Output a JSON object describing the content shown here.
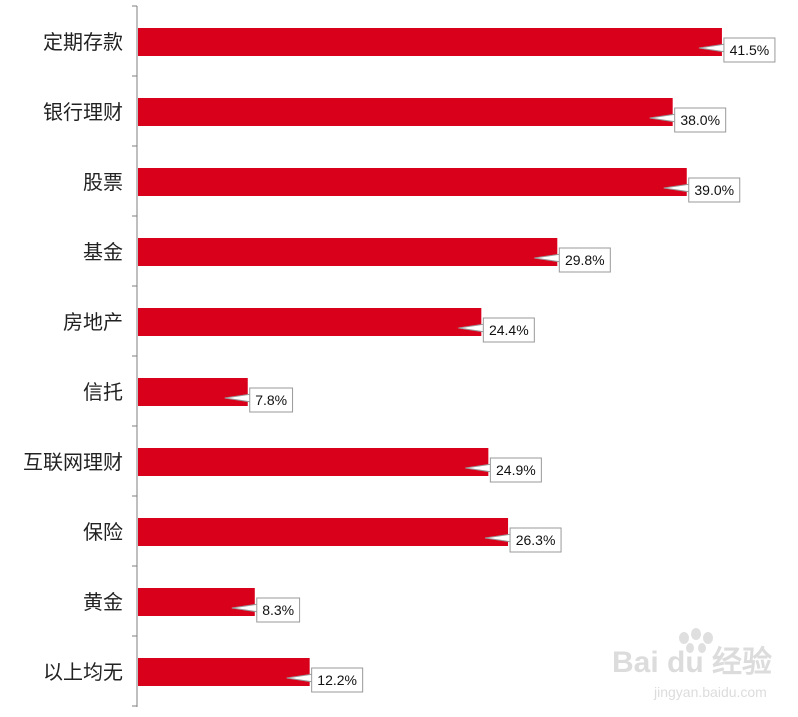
{
  "chart_data": {
    "type": "bar",
    "orientation": "horizontal",
    "categories": [
      "定期存款",
      "银行理财",
      "股票",
      "基金",
      "房地产",
      "信托",
      "互联网理财",
      "保险",
      "黄金",
      "以上均无"
    ],
    "values": [
      41.5,
      38.0,
      39.0,
      29.8,
      24.4,
      7.8,
      24.9,
      26.3,
      8.3,
      12.2
    ],
    "value_labels": [
      "41.5%",
      "38.0%",
      "39.0%",
      "29.8%",
      "24.4%",
      "7.8%",
      "24.9%",
      "26.3%",
      "8.3%",
      "12.2%"
    ],
    "value_unit": "%",
    "xlim": [
      0,
      42.5
    ],
    "grid": false,
    "legend": "none",
    "bar_color": "#d9001b",
    "label_box_border": "#999999"
  },
  "watermark": {
    "brand": "Bai du 经验",
    "url": "jingyan.baidu.com"
  }
}
